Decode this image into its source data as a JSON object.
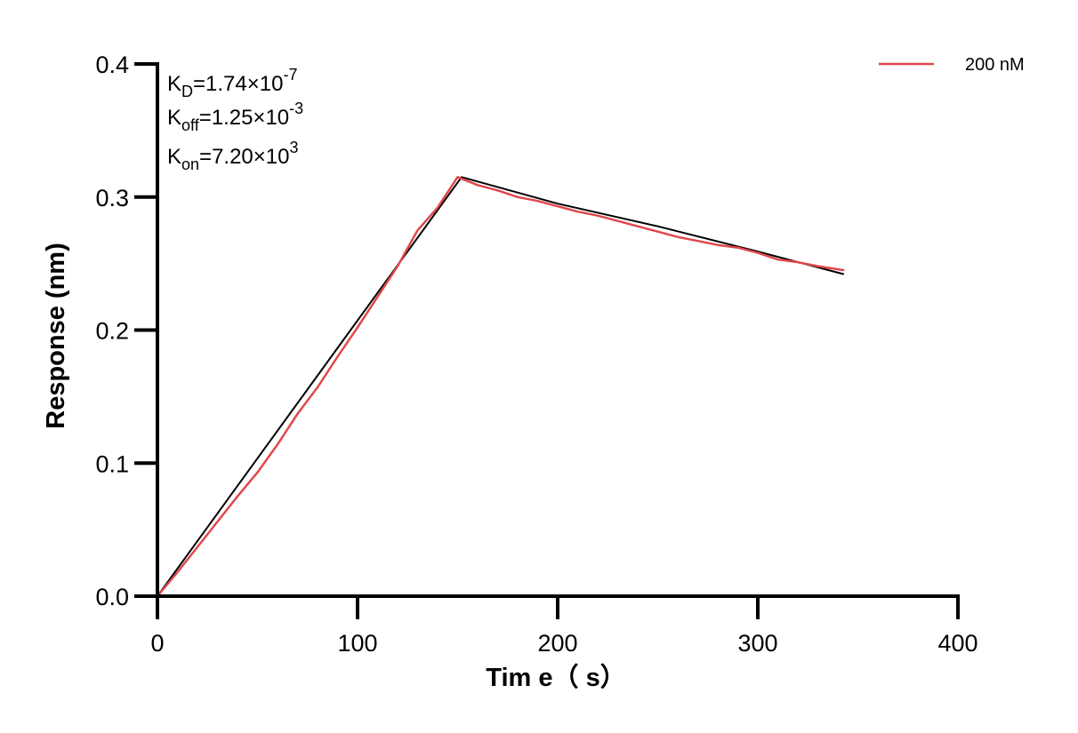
{
  "chart_data": {
    "type": "line",
    "title": "",
    "xlabel": "Tim e（ s）",
    "ylabel": "Response (nm)",
    "xlim": [
      0,
      400
    ],
    "ylim": [
      0.0,
      0.4
    ],
    "x_ticks": [
      0,
      100,
      200,
      300,
      400
    ],
    "x_tick_labels": [
      "0",
      "100",
      "200",
      "300",
      "400"
    ],
    "y_ticks": [
      0.0,
      0.1,
      0.2,
      0.3,
      0.4
    ],
    "y_tick_labels": [
      "0.0",
      "0.1",
      "0.2",
      "0.3",
      "0.4"
    ],
    "grid": false,
    "legend_position": "top-right",
    "annotations": {
      "kd": {
        "base": "K",
        "sub": "D",
        "value": "=1.74×10",
        "exp": "-7"
      },
      "koff": {
        "base": "K",
        "sub": "off",
        "value": "=1.25×10",
        "exp": "-3"
      },
      "kon": {
        "base": "K",
        "sub": "on",
        "value": "=7.20×10",
        "exp": "3"
      }
    },
    "series": [
      {
        "name": "200 nM",
        "color": "#e0474c",
        "role": "measured",
        "x": [
          0,
          10,
          20,
          30,
          40,
          50,
          60,
          70,
          80,
          90,
          100,
          110,
          120,
          130,
          140,
          150,
          160,
          170,
          180,
          190,
          200,
          210,
          220,
          230,
          240,
          250,
          260,
          270,
          280,
          290,
          300,
          310,
          320,
          330,
          343
        ],
        "y": [
          0.0,
          0.018,
          0.037,
          0.056,
          0.075,
          0.093,
          0.114,
          0.137,
          0.157,
          0.18,
          0.202,
          0.225,
          0.248,
          0.275,
          0.292,
          0.315,
          0.309,
          0.305,
          0.3,
          0.297,
          0.293,
          0.289,
          0.286,
          0.282,
          0.278,
          0.274,
          0.27,
          0.267,
          0.264,
          0.262,
          0.258,
          0.253,
          0.251,
          0.248,
          0.245
        ]
      },
      {
        "name": "",
        "color": "#000000",
        "role": "fit",
        "x": [
          0,
          152,
          200,
          250,
          300,
          343
        ],
        "y": [
          0.0,
          0.315,
          0.295,
          0.278,
          0.259,
          0.242
        ]
      }
    ]
  }
}
